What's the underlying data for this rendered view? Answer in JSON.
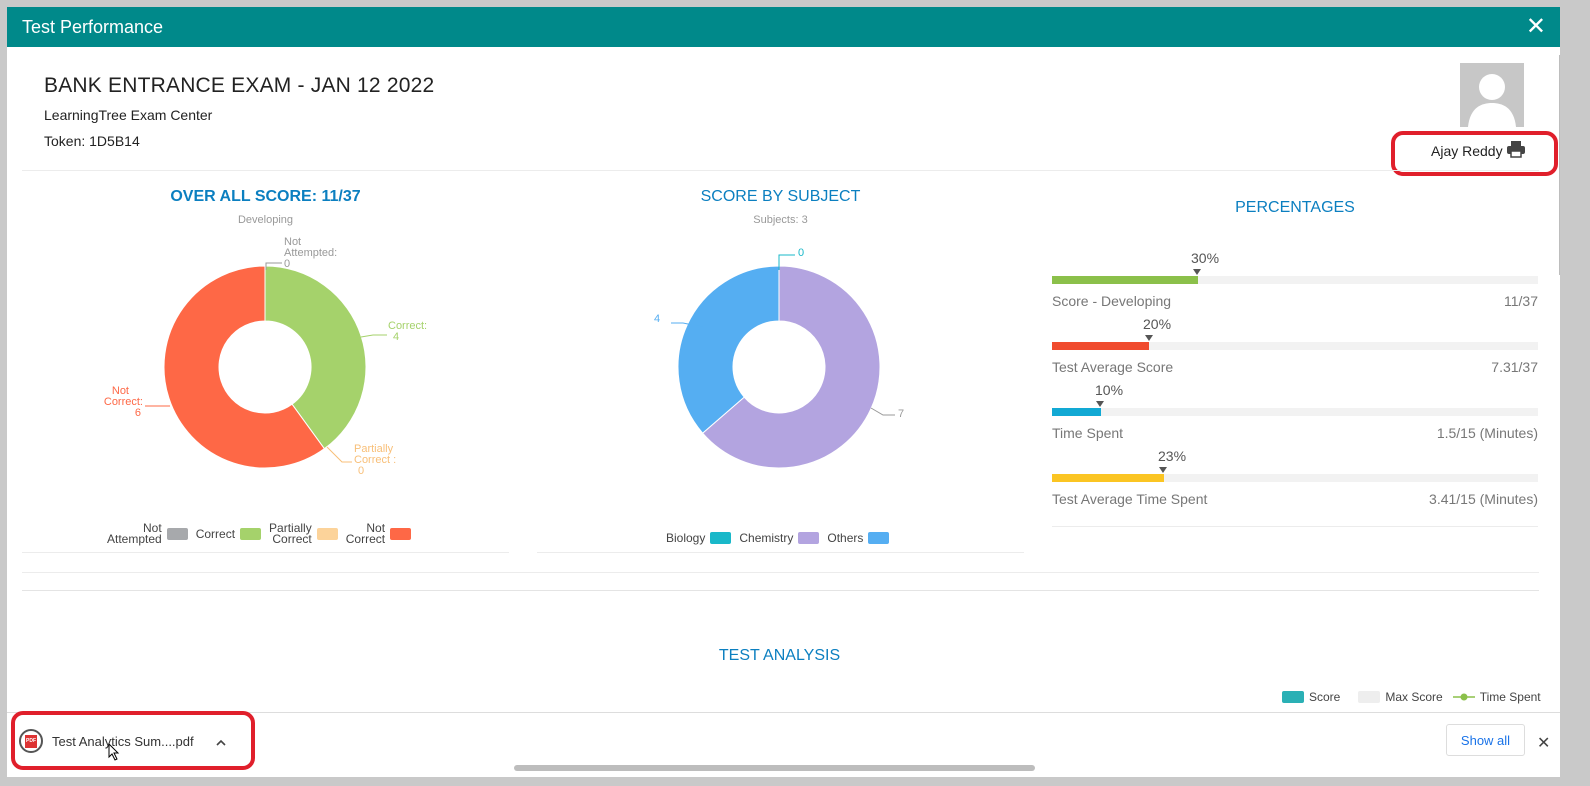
{
  "window": {
    "title": "Test Performance",
    "close_glyph": "✕"
  },
  "header": {
    "exam_title": "BANK ENTRANCE EXAM - JAN 12 2022",
    "center": "LearningTree Exam Center",
    "token": "Token: 1D5B14",
    "user_name": "Ajay Reddy",
    "avatar_icon": "user-avatar-icon",
    "print_icon": "printer-icon"
  },
  "overall": {
    "title": "OVER ALL SCORE: 11/37",
    "subtitle": "Developing",
    "labels": {
      "not_attempted": [
        "Not",
        "Attempted:",
        "0"
      ],
      "correct": [
        "Correct:",
        "4"
      ],
      "partially": [
        "Partially",
        "Correct :",
        "0"
      ],
      "not_correct": [
        "Not",
        "Correct:",
        "6"
      ]
    },
    "legend": [
      {
        "l1": "Not",
        "l2": "Attempted",
        "color": "#a7a9ac"
      },
      {
        "l1": "",
        "l2": "Correct",
        "color": "#a5d26b"
      },
      {
        "l1": "Partially",
        "l2": "Correct",
        "color": "#fcd39a"
      },
      {
        "l1": "Not",
        "l2": "Correct",
        "color": "#fe6846"
      }
    ]
  },
  "subject": {
    "title": "SCORE BY SUBJECT",
    "subtitle": "Subjects: 3",
    "labels": {
      "top": "0",
      "left": "4",
      "right": "7"
    },
    "legend": [
      {
        "label": "Biology",
        "color": "#19b8c9"
      },
      {
        "label": "Chemistry",
        "color": "#b3a4e0"
      },
      {
        "label": "Others",
        "color": "#55aef2"
      }
    ]
  },
  "percentages": {
    "title": "PERCENTAGES",
    "bars": [
      {
        "pct": "30%",
        "value": 0.3,
        "name": "Score - Developing",
        "val": "11/37",
        "color": "#8bc04a"
      },
      {
        "pct": "20%",
        "value": 0.2,
        "name": "Test Average Score",
        "val": "7.31/37",
        "color": "#f04b2e"
      },
      {
        "pct": "10%",
        "value": 0.1,
        "name": "Time Spent",
        "val": "1.5/15 (Minutes)",
        "color": "#12a9d4"
      },
      {
        "pct": "23%",
        "value": 0.23,
        "name": "Test Average Time Spent",
        "val": "3.41/15 (Minutes)",
        "color": "#fbc523"
      }
    ]
  },
  "analysis": {
    "title": "TEST ANALYSIS",
    "legend": [
      {
        "label": "Score",
        "color": "#2ab0b5"
      },
      {
        "label": "Max Score",
        "color": "#eeeeee"
      },
      {
        "label": "Time Spent",
        "color": "#8bc04a"
      }
    ]
  },
  "downloads": {
    "file": "Test Analytics Sum....pdf",
    "file_icon": "pdf-icon",
    "show_all": "Show all",
    "close_glyph": "✕",
    "chevron": "^"
  },
  "chart_data": [
    {
      "type": "pie",
      "title": "OVER ALL SCORE: 11/37",
      "subtitle": "Developing",
      "categories": [
        "Not Attempted",
        "Correct",
        "Partially Correct",
        "Not Correct"
      ],
      "values": [
        0,
        4,
        0,
        6
      ],
      "colors": [
        "#a7a9ac",
        "#a5d26b",
        "#fcd39a",
        "#fe6846"
      ],
      "donut": true,
      "legend": "bottom"
    },
    {
      "type": "pie",
      "title": "SCORE BY SUBJECT",
      "subtitle": "Subjects: 3",
      "categories": [
        "Biology",
        "Chemistry",
        "Others"
      ],
      "values": [
        0,
        7,
        4
      ],
      "colors": [
        "#19b8c9",
        "#b3a4e0",
        "#55aef2"
      ],
      "donut": true,
      "legend": "bottom"
    }
  ]
}
